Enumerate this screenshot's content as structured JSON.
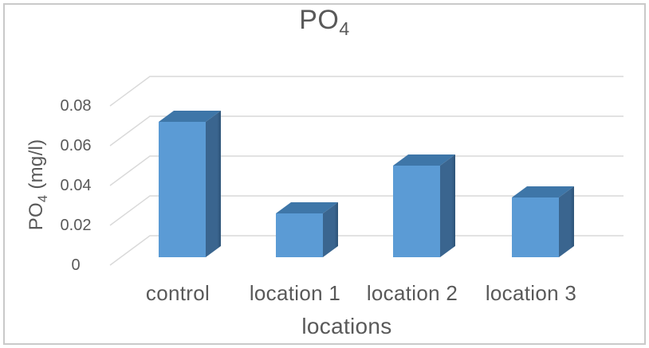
{
  "window": {
    "background": "#ffffff",
    "border_color": "#c9c9c9"
  },
  "chart_data": {
    "type": "bar",
    "variant": "3d-column",
    "title": {
      "text": "PO",
      "subscript": "4"
    },
    "x_axis": {
      "label": "locations",
      "categories": [
        "control",
        "location 1",
        "location 2",
        "location 3"
      ]
    },
    "y_axis": {
      "label_pre": "PO",
      "label_sub": "4",
      "label_post": " (mg/l)",
      "ticks": [
        0,
        0.02,
        0.04,
        0.06,
        0.08
      ],
      "tick_labels": [
        "0",
        "0.02",
        "0.04",
        "0.06",
        "0.08"
      ],
      "min": 0,
      "max": 0.08,
      "tick_step": 0.02
    },
    "series": [
      {
        "name": "PO4",
        "values": [
          0.068,
          0.022,
          0.046,
          0.03
        ]
      }
    ],
    "grid": true,
    "legend": "none",
    "colors": {
      "bar_front": "#5b9bd5",
      "bar_top": "#3e76a8",
      "bar_side": "#3a658f",
      "bar_side_dark": "#2e5478",
      "gridline": "#d9d9d9",
      "text": "#595959"
    }
  }
}
